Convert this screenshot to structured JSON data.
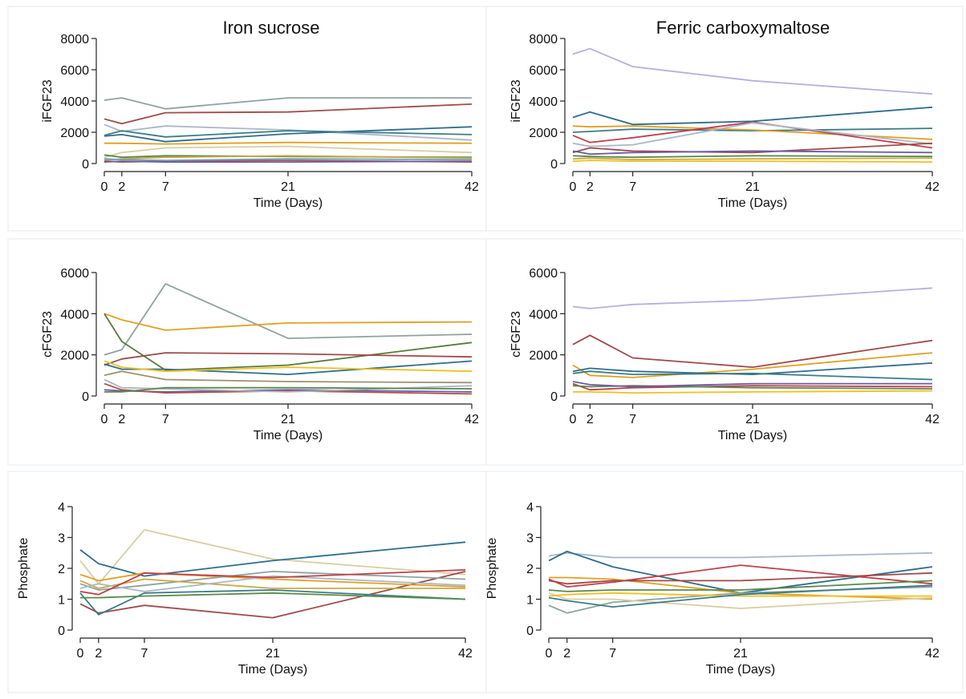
{
  "figure": {
    "column_titles": [
      "Iron sucrose",
      "Ferric carboxymaltose"
    ]
  },
  "chart_data": [
    {
      "type": "line",
      "title": "Iron sucrose",
      "xlabel": "Time (Days)",
      "ylabel": "iFGF23",
      "x": [
        0,
        2,
        7,
        21,
        42
      ],
      "xticks": [
        0,
        2,
        7,
        21,
        42
      ],
      "ylim": [
        0,
        8000
      ],
      "yticks": [
        0,
        2000,
        4000,
        6000,
        8000
      ],
      "grid": false,
      "series": [
        {
          "color": "#8fa3a0",
          "values": [
            4050,
            4200,
            3500,
            4200,
            4200
          ]
        },
        {
          "color": "#a04a4a",
          "values": [
            2850,
            2550,
            3250,
            3300,
            3800
          ]
        },
        {
          "color": "#a9b7c8",
          "values": [
            2500,
            2050,
            2400,
            2150,
            1500
          ]
        },
        {
          "color": "#2e6d8e",
          "values": [
            1750,
            1850,
            1400,
            1900,
            2350
          ]
        },
        {
          "color": "#3a7c89",
          "values": [
            1800,
            2100,
            1700,
            2100,
            1850
          ]
        },
        {
          "color": "#e0a020",
          "values": [
            1300,
            1300,
            1250,
            1350,
            1300
          ]
        },
        {
          "color": "#d8cda0",
          "values": [
            400,
            700,
            1000,
            1100,
            700
          ]
        },
        {
          "color": "#5a8a4a",
          "values": [
            550,
            400,
            500,
            450,
            400
          ]
        },
        {
          "color": "#c8aa40",
          "values": [
            200,
            300,
            400,
            500,
            350
          ]
        },
        {
          "color": "#b05050",
          "values": [
            150,
            100,
            150,
            200,
            100
          ]
        },
        {
          "color": "#6a5aa8",
          "values": [
            100,
            150,
            100,
            100,
            150
          ]
        },
        {
          "color": "#6fa0b8",
          "values": [
            300,
            250,
            200,
            300,
            250
          ]
        }
      ]
    },
    {
      "type": "line",
      "title": "Ferric carboxymaltose",
      "xlabel": "Time (Days)",
      "ylabel": "iFGF23",
      "x": [
        0,
        2,
        7,
        21,
        42
      ],
      "xticks": [
        0,
        2,
        7,
        21,
        42
      ],
      "ylim": [
        0,
        8000
      ],
      "yticks": [
        0,
        2000,
        4000,
        6000,
        8000
      ],
      "grid": false,
      "series": [
        {
          "color": "#b9aee0",
          "values": [
            7000,
            7350,
            6200,
            5300,
            4450
          ]
        },
        {
          "color": "#2e6d8e",
          "values": [
            2950,
            3300,
            2500,
            2700,
            3600
          ]
        },
        {
          "color": "#3a7c89",
          "values": [
            2000,
            2050,
            2200,
            2100,
            2250
          ]
        },
        {
          "color": "#e0a020",
          "values": [
            2400,
            2350,
            2400,
            2150,
            1550
          ]
        },
        {
          "color": "#c0404a",
          "values": [
            1800,
            1350,
            1650,
            2650,
            1000
          ]
        },
        {
          "color": "#a9b7c8",
          "values": [
            1300,
            1100,
            1200,
            2600,
            1250
          ]
        },
        {
          "color": "#a04a4a",
          "values": [
            700,
            1000,
            800,
            700,
            1300
          ]
        },
        {
          "color": "#5a8a4a",
          "values": [
            500,
            450,
            400,
            500,
            450
          ]
        },
        {
          "color": "#c8aa40",
          "values": [
            300,
            350,
            250,
            300,
            350
          ]
        },
        {
          "color": "#6a5aa8",
          "values": [
            800,
            600,
            700,
            800,
            700
          ]
        },
        {
          "color": "#f0c020",
          "values": [
            150,
            200,
            150,
            150,
            100
          ]
        }
      ]
    },
    {
      "type": "line",
      "title": "",
      "xlabel": "Time (Days)",
      "ylabel": "cFGF23",
      "x": [
        0,
        2,
        7,
        21,
        42
      ],
      "xticks": [
        0,
        2,
        7,
        21,
        42
      ],
      "ylim": [
        0,
        6000
      ],
      "yticks": [
        0,
        2000,
        4000,
        6000
      ],
      "grid": false,
      "series": [
        {
          "color": "#8fa3a0",
          "values": [
            2000,
            2250,
            5450,
            2800,
            3000
          ]
        },
        {
          "color": "#e0a020",
          "values": [
            4000,
            3700,
            3200,
            3550,
            3600
          ]
        },
        {
          "color": "#5a7a3a",
          "values": [
            4000,
            2650,
            1250,
            1500,
            2600
          ]
        },
        {
          "color": "#a04a4a",
          "values": [
            1500,
            1800,
            2100,
            2050,
            1900
          ]
        },
        {
          "color": "#2e6d8e",
          "values": [
            1550,
            1300,
            1300,
            1050,
            1700
          ]
        },
        {
          "color": "#f0c020",
          "values": [
            1700,
            1400,
            1200,
            1400,
            1200
          ]
        },
        {
          "color": "#a09070",
          "values": [
            1000,
            1200,
            800,
            700,
            650
          ]
        },
        {
          "color": "#6a5aa8",
          "values": [
            300,
            250,
            200,
            300,
            200
          ]
        },
        {
          "color": "#b05050",
          "values": [
            600,
            300,
            150,
            250,
            100
          ]
        },
        {
          "color": "#a9b7c8",
          "values": [
            800,
            400,
            350,
            200,
            500
          ]
        },
        {
          "color": "#5a8a4a",
          "values": [
            200,
            200,
            400,
            400,
            350
          ]
        }
      ]
    },
    {
      "type": "line",
      "title": "",
      "xlabel": "Time (Days)",
      "ylabel": "cFGF23",
      "x": [
        0,
        2,
        7,
        21,
        42
      ],
      "xticks": [
        0,
        2,
        7,
        21,
        42
      ],
      "ylim": [
        0,
        6000
      ],
      "yticks": [
        0,
        2000,
        4000,
        6000
      ],
      "grid": false,
      "series": [
        {
          "color": "#b9aee0",
          "values": [
            4350,
            4250,
            4450,
            4650,
            5250
          ]
        },
        {
          "color": "#a04a4a",
          "values": [
            2500,
            2950,
            1850,
            1400,
            2700
          ]
        },
        {
          "color": "#e0a020",
          "values": [
            1500,
            1000,
            900,
            1300,
            2100
          ]
        },
        {
          "color": "#2e6d8e",
          "values": [
            1200,
            1350,
            1200,
            1050,
            1600
          ]
        },
        {
          "color": "#3a7c89",
          "values": [
            1100,
            1200,
            1050,
            1100,
            800
          ]
        },
        {
          "color": "#c0404a",
          "values": [
            600,
            300,
            400,
            500,
            450
          ]
        },
        {
          "color": "#5a8a4a",
          "values": [
            500,
            450,
            500,
            400,
            350
          ]
        },
        {
          "color": "#f0c020",
          "values": [
            200,
            200,
            150,
            200,
            250
          ]
        },
        {
          "color": "#6a5aa8",
          "values": [
            700,
            550,
            450,
            600,
            600
          ]
        }
      ]
    },
    {
      "type": "line",
      "title": "",
      "xlabel": "Time (Days)",
      "ylabel": "Phosphate",
      "x": [
        0,
        2,
        7,
        21,
        42
      ],
      "xticks": [
        0,
        2,
        7,
        21,
        42
      ],
      "ylim": [
        0,
        4
      ],
      "yticks": [
        0,
        1,
        2,
        3,
        4
      ],
      "grid": false,
      "series": [
        {
          "color": "#d8cda0",
          "values": [
            2.25,
            1.5,
            3.25,
            2.3,
            1.8
          ]
        },
        {
          "color": "#2e6d8e",
          "values": [
            2.6,
            2.15,
            1.75,
            2.25,
            2.85
          ]
        },
        {
          "color": "#a04a4a",
          "values": [
            0.85,
            0.55,
            0.8,
            0.4,
            1.9
          ]
        },
        {
          "color": "#e0a020",
          "values": [
            1.8,
            1.6,
            1.85,
            1.65,
            1.4
          ]
        },
        {
          "color": "#3a7c89",
          "values": [
            1.2,
            0.5,
            1.2,
            1.3,
            1.0
          ]
        },
        {
          "color": "#5a8a4a",
          "values": [
            1.05,
            1.05,
            1.1,
            1.2,
            1.0
          ]
        },
        {
          "color": "#8fa3a0",
          "values": [
            1.5,
            1.3,
            1.45,
            1.9,
            1.65
          ]
        },
        {
          "color": "#c8aa40",
          "values": [
            1.6,
            1.35,
            1.65,
            1.35,
            1.35
          ]
        },
        {
          "color": "#a9b7c8",
          "values": [
            1.35,
            1.5,
            1.25,
            1.75,
            1.45
          ]
        },
        {
          "color": "#c0404a",
          "values": [
            1.25,
            1.15,
            1.85,
            1.7,
            1.95
          ]
        }
      ]
    },
    {
      "type": "line",
      "title": "",
      "xlabel": "Time (Days)",
      "ylabel": "Phosphate",
      "x": [
        0,
        2,
        7,
        21,
        42
      ],
      "xticks": [
        0,
        2,
        7,
        21,
        42
      ],
      "ylim": [
        0,
        4
      ],
      "yticks": [
        0,
        1,
        2,
        3,
        4
      ],
      "grid": false,
      "series": [
        {
          "color": "#a9b7c8",
          "values": [
            2.4,
            2.5,
            2.35,
            2.35,
            2.5
          ]
        },
        {
          "color": "#2e6d8e",
          "values": [
            2.25,
            2.55,
            2.05,
            1.2,
            2.05
          ]
        },
        {
          "color": "#c0404a",
          "values": [
            1.65,
            1.4,
            1.55,
            2.1,
            1.5
          ]
        },
        {
          "color": "#e0a020",
          "values": [
            1.7,
            1.7,
            1.65,
            1.2,
            1.0
          ]
        },
        {
          "color": "#8fa3a0",
          "values": [
            0.8,
            0.55,
            0.9,
            1.2,
            1.4
          ]
        },
        {
          "color": "#d8cda0",
          "values": [
            1.2,
            1.0,
            1.0,
            0.7,
            1.05
          ]
        },
        {
          "color": "#5a8a4a",
          "values": [
            1.3,
            1.25,
            1.3,
            1.3,
            1.6
          ]
        },
        {
          "color": "#a04a4a",
          "values": [
            1.6,
            1.5,
            1.6,
            1.6,
            1.85
          ]
        },
        {
          "color": "#f0c020",
          "values": [
            1.1,
            1.15,
            1.2,
            1.1,
            1.1
          ]
        },
        {
          "color": "#3a7c89",
          "values": [
            1.05,
            0.95,
            0.75,
            1.15,
            1.45
          ]
        }
      ]
    }
  ]
}
